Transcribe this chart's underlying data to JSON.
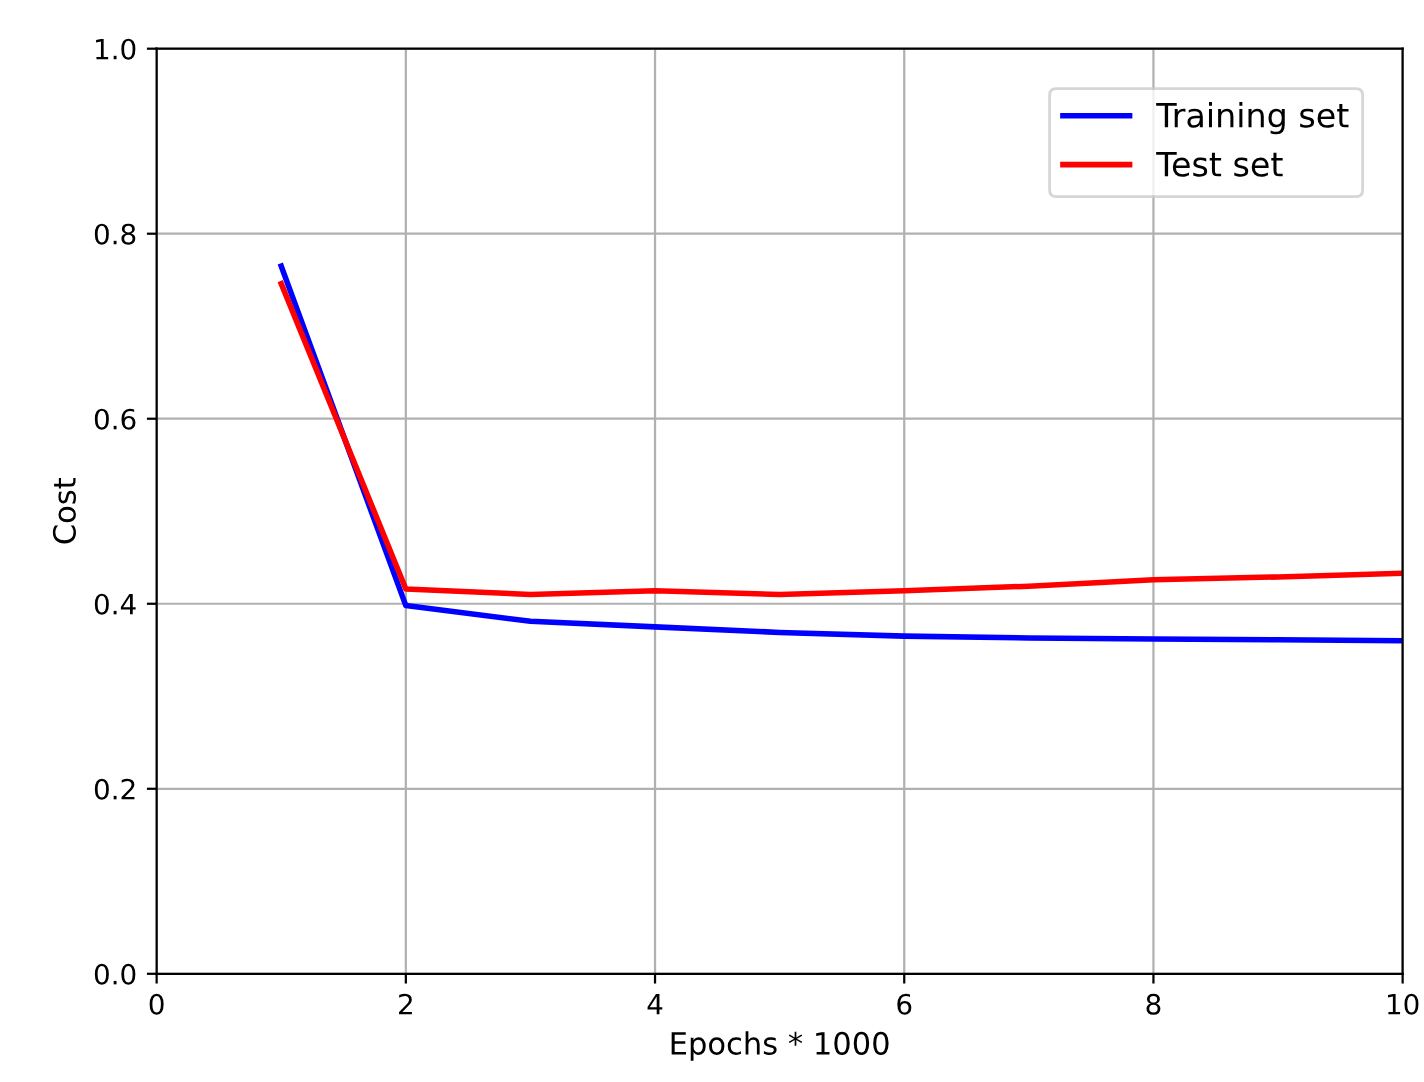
{
  "chart_data": {
    "type": "line",
    "xlabel": "Epochs * 1000",
    "ylabel": "Cost",
    "x": [
      1,
      2,
      3,
      4,
      5,
      6,
      7,
      8,
      9,
      10
    ],
    "series": [
      {
        "name": "Training set",
        "color": "#0000ff",
        "values": [
          0.765,
          0.398,
          0.381,
          0.375,
          0.369,
          0.365,
          0.363,
          0.362,
          0.361,
          0.36
        ]
      },
      {
        "name": "Test set",
        "color": "#ff0000",
        "values": [
          0.746,
          0.416,
          0.41,
          0.414,
          0.41,
          0.414,
          0.419,
          0.426,
          0.429,
          0.433
        ]
      }
    ],
    "xlim": [
      0,
      10
    ],
    "xticks": [
      0,
      2,
      4,
      6,
      8,
      10
    ],
    "ylim": [
      0,
      1
    ],
    "yticks": [
      {
        "value": 0,
        "label": "0.0"
      },
      {
        "value": 0.2,
        "label": "0.2"
      },
      {
        "value": 0.4,
        "label": "0.4"
      },
      {
        "value": 0.6,
        "label": "0.6"
      },
      {
        "value": 0.8,
        "label": "0.8"
      },
      {
        "value": 1,
        "label": "1.0"
      }
    ],
    "grid": true,
    "legend": "top right"
  }
}
